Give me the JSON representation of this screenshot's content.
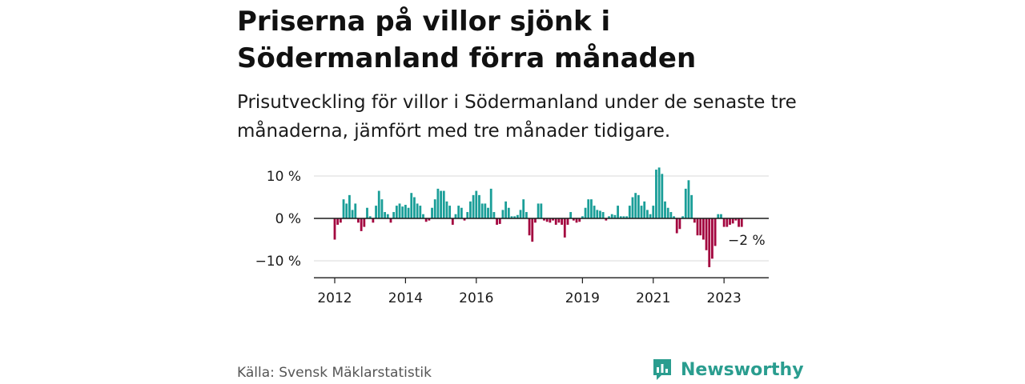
{
  "title": "Priserna på villor sjönk i Södermanland förra månaden",
  "subtitle": "Prisutveckling för villor i Södermanland under de senaste tre månaderna, jämfört med tre månader tidigare.",
  "source": "Källa: Svensk Mäklarstatistik",
  "brand": "Newsworthy",
  "colors": {
    "positive": "#1a9e98",
    "negative": "#a3063f",
    "brand": "#2a9d8f"
  },
  "chart_data": {
    "type": "bar",
    "ylim": [
      -14,
      12
    ],
    "y_ticks": [
      10,
      0,
      -10
    ],
    "y_tick_labels": [
      "10 %",
      "0 %",
      "−10 %"
    ],
    "x_ticks": [
      "2012",
      "2014",
      "2016",
      "2019",
      "2021",
      "2023"
    ],
    "annotation": "−2 %",
    "series": [
      {
        "values": [
          -5,
          -1.5,
          -1,
          4.5,
          3.5,
          5.5,
          2,
          3.5,
          -1,
          -3,
          -2,
          2.5,
          0.5,
          -1,
          3,
          6.5,
          4.5,
          1.5,
          1,
          -1,
          1.5,
          3,
          3.5,
          2.8,
          3.2,
          2.5,
          6,
          5,
          3.5,
          3,
          1,
          -0.8,
          -0.5,
          2.5,
          4.5,
          7,
          6.5,
          6.5,
          4,
          3,
          -1.5,
          1,
          3,
          2.5,
          -0.5,
          1.5,
          4,
          5.5,
          6.5,
          5.5,
          3.5,
          3.5,
          2.5,
          7,
          1.5,
          -1.5,
          -1.3,
          2,
          4,
          2.5,
          0.5,
          0.5,
          0.8,
          2,
          4.5,
          1.5,
          -4,
          -5.5,
          -1,
          3.5,
          3.5,
          -0.5,
          -0.8,
          -1,
          -0.5,
          -1.5,
          -1,
          -1.5,
          -4.5,
          -1.5,
          1.5,
          -0.5,
          -1,
          -0.8,
          0.5,
          2.5,
          4.5,
          4.5,
          3,
          2,
          1.8,
          1.5,
          -0.5,
          0.5,
          1,
          0.8,
          3,
          0.5,
          0.5,
          0.5,
          3,
          5,
          6,
          5.5,
          3,
          4,
          2,
          1,
          3,
          11.5,
          12,
          10.5,
          4,
          2.5,
          1.5,
          0.5,
          -3.5,
          -2.5,
          0.5,
          7,
          9,
          5.5,
          -1,
          -4,
          -4,
          -5,
          -7.5,
          -11.5,
          -9.5,
          -6.5,
          1,
          1,
          -2,
          -2,
          -1.5,
          -1.2,
          -0.5,
          -2,
          -2
        ]
      }
    ]
  }
}
